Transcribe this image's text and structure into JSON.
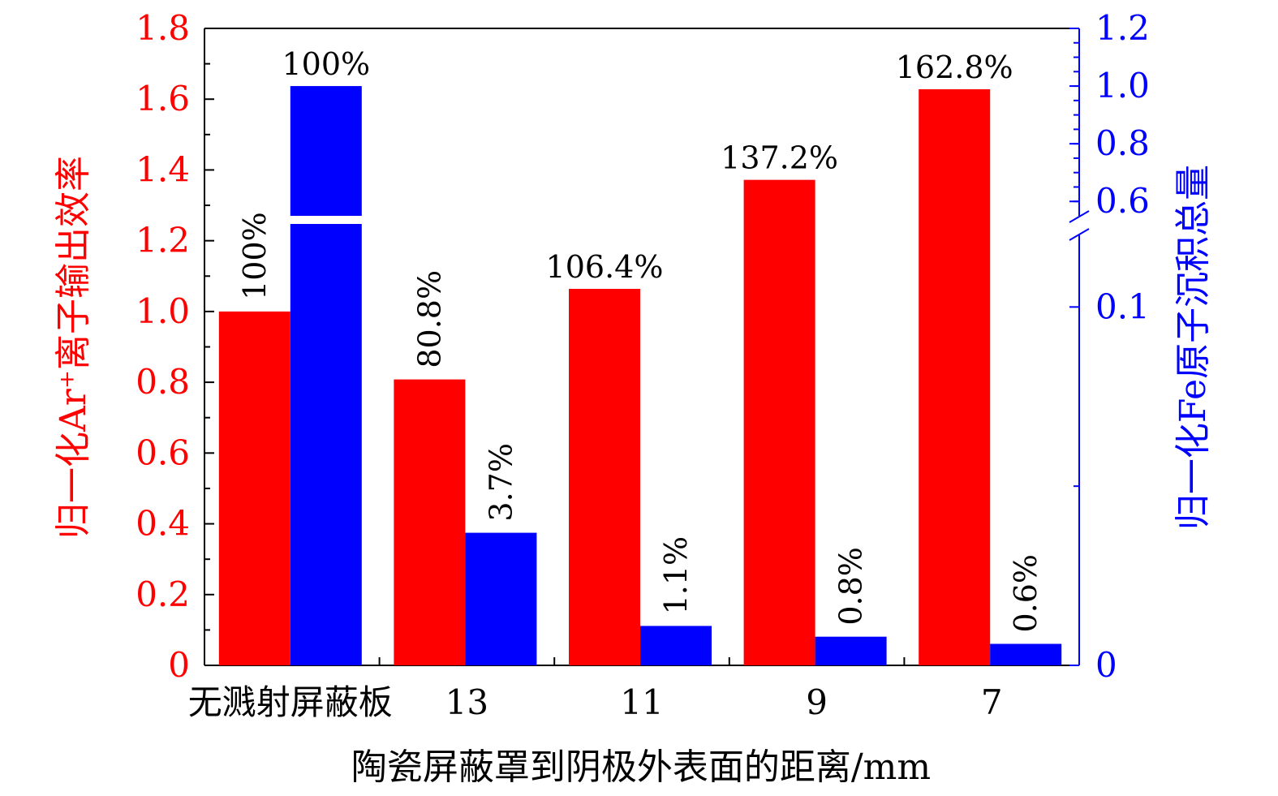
{
  "chart_data": {
    "type": "bar",
    "title": "",
    "xlabel": "陶瓷屏蔽罩到阴极外表面的距离/mm",
    "categories": [
      "无溅射屏蔽板",
      "13",
      "11",
      "9",
      "7"
    ],
    "y_left": {
      "label": "归一化Ar⁺离子输出效率",
      "color": "#ff0000",
      "ylim": [
        0,
        1.8
      ],
      "ticks": [
        "0",
        "0.2",
        "0.4",
        "0.6",
        "0.8",
        "1.0",
        "1.2",
        "1.4",
        "1.6",
        "1.8"
      ],
      "tick_values": [
        0,
        0.2,
        0.4,
        0.6,
        0.8,
        1.0,
        1.2,
        1.4,
        1.6,
        1.8
      ]
    },
    "y_right": {
      "label": "归一化Fe原子沉积总量",
      "color": "#0000ff",
      "scale": "broken",
      "lower_range": [
        0,
        0.12
      ],
      "upper_range": [
        0.55,
        1.2
      ],
      "ticks": [
        "0",
        "0.1",
        "0.6",
        "0.8",
        "1.0",
        "1.2"
      ],
      "tick_values": [
        0,
        0.1,
        0.6,
        0.8,
        1.0,
        1.2
      ]
    },
    "series": [
      {
        "axis": "left",
        "color": "#ff0000",
        "values": [
          1.0,
          0.808,
          1.064,
          1.372,
          1.628
        ],
        "labels": [
          "100%",
          "80.8%",
          "106.4%",
          "137.2%",
          "162.8%"
        ],
        "label_rotation": [
          -90,
          -90,
          0,
          0,
          0
        ]
      },
      {
        "axis": "right",
        "color": "#0000ff",
        "values": [
          1.0,
          0.037,
          0.011,
          0.008,
          0.006
        ],
        "labels": [
          "100%",
          "3.7%",
          "1.1%",
          "0.8%",
          "0.6%"
        ],
        "label_rotation": [
          0,
          -90,
          -90,
          -90,
          -90
        ]
      }
    ],
    "legend": "none",
    "grid": false
  }
}
